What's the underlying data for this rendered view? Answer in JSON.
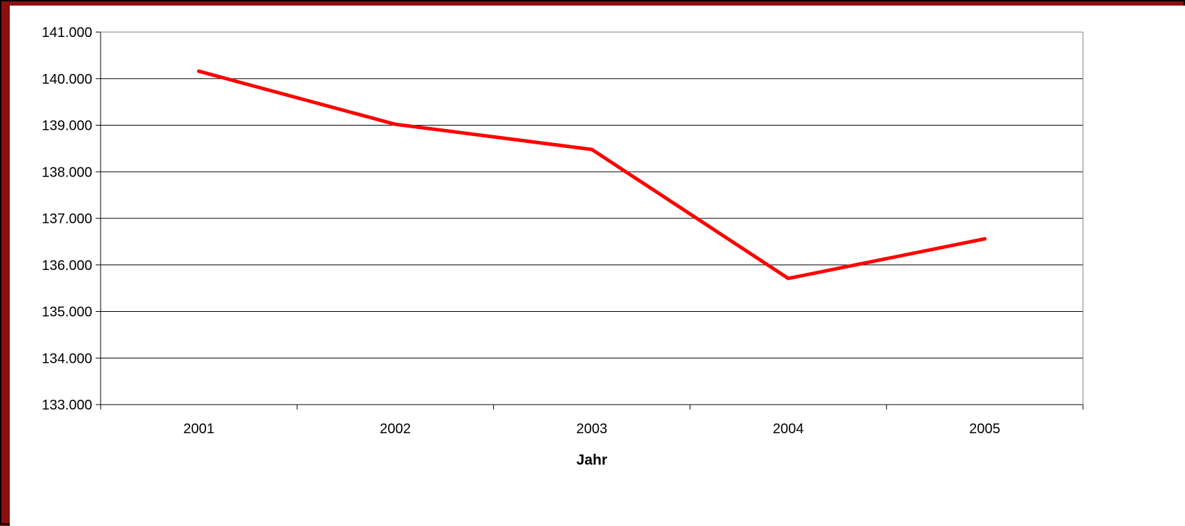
{
  "chart_data": {
    "type": "line",
    "title": "",
    "xlabel": "Jahr",
    "ylabel": "",
    "categories": [
      "2001",
      "2002",
      "2003",
      "2004",
      "2005"
    ],
    "series": [
      {
        "values": [
          140160,
          139020,
          138480,
          135710,
          136560
        ]
      }
    ],
    "ylim": [
      133000,
      141000
    ],
    "yticks": [
      133000,
      134000,
      135000,
      136000,
      137000,
      138000,
      139000,
      140000,
      141000
    ],
    "ytick_labels": [
      "133.000",
      "134.000",
      "135.000",
      "136.000",
      "137.000",
      "138.000",
      "139.000",
      "140.000",
      "141.000"
    ],
    "grid": "horizontal",
    "legend": "none",
    "line_color": "#ff0000",
    "gridline_color": "#000000",
    "background_color": "#ffffff",
    "frame_color": "#8b1010"
  }
}
